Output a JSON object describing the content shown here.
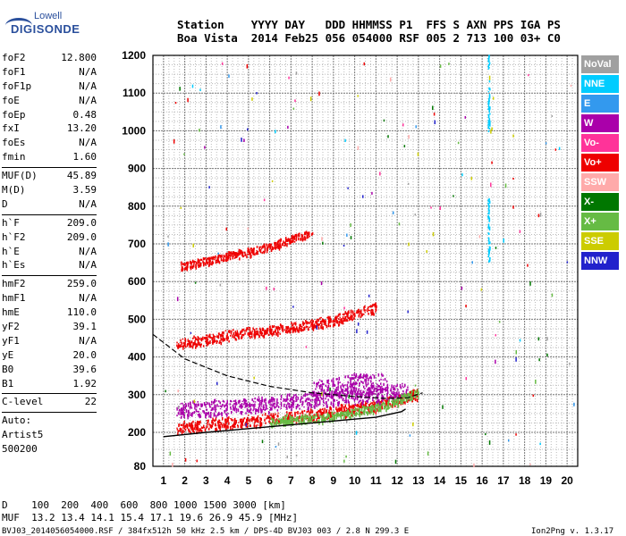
{
  "logo": {
    "line1": "Lowell",
    "line2": "DIGISONDE"
  },
  "header": {
    "labels": "Station    YYYY DAY   DDD HHMMSS P1  FFS S AXN PPS IGA PS",
    "values": "Boa Vista  2014 Feb25 056 054000 RSF 005 2 713 100 03+ C0"
  },
  "params": [
    {
      "group": 1,
      "rows": [
        {
          "name": "foF2",
          "value": "12.800"
        },
        {
          "name": "foF1",
          "value": "N/A"
        },
        {
          "name": "foF1p",
          "value": "N/A"
        },
        {
          "name": "foE",
          "value": "N/A"
        },
        {
          "name": "foEp",
          "value": "0.48"
        },
        {
          "name": "fxI",
          "value": "13.20"
        },
        {
          "name": "foEs",
          "value": "N/A"
        },
        {
          "name": "fmin",
          "value": "1.60"
        }
      ]
    },
    {
      "group": 2,
      "rows": [
        {
          "name": "MUF(D)",
          "value": "45.89"
        },
        {
          "name": "M(D)",
          "value": "3.59"
        },
        {
          "name": "D",
          "value": "N/A"
        }
      ]
    },
    {
      "group": 3,
      "rows": [
        {
          "name": "h`F",
          "value": "209.0"
        },
        {
          "name": "h`F2",
          "value": "209.0"
        },
        {
          "name": "h`E",
          "value": "N/A"
        },
        {
          "name": "h`Es",
          "value": "N/A"
        }
      ]
    },
    {
      "group": 4,
      "rows": [
        {
          "name": "hmF2",
          "value": "259.0"
        },
        {
          "name": "hmF1",
          "value": "N/A"
        },
        {
          "name": "hmE",
          "value": "110.0"
        },
        {
          "name": "yF2",
          "value": "39.1"
        },
        {
          "name": "yF1",
          "value": "N/A"
        },
        {
          "name": "yE",
          "value": "20.0"
        },
        {
          "name": "B0",
          "value": "39.6"
        },
        {
          "name": "B1",
          "value": "1.92"
        }
      ]
    },
    {
      "group": 5,
      "rows": [
        {
          "name": "C-level",
          "value": "22"
        }
      ]
    }
  ],
  "scaling": {
    "line1": "Auto:",
    "line2": "Artist5",
    "line3": "500200"
  },
  "legend": [
    {
      "label": "NoVal",
      "color": "#a0a0a0"
    },
    {
      "label": "NNE",
      "color": "#00ccff"
    },
    {
      "label": "E",
      "color": "#3399ee"
    },
    {
      "label": "W",
      "color": "#aa00aa"
    },
    {
      "label": "Vo-",
      "color": "#ff3399"
    },
    {
      "label": "Vo+",
      "color": "#ee0000"
    },
    {
      "label": "SSW",
      "color": "#ffaaaa"
    },
    {
      "label": "X-",
      "color": "#007700"
    },
    {
      "label": "X+",
      "color": "#66bb44"
    },
    {
      "label": "SSE",
      "color": "#cccc00"
    },
    {
      "label": "NNW",
      "color": "#2222cc"
    }
  ],
  "footer": {
    "distance_line": "D    100  200  400  600  800 1000 1500 3000 [km]",
    "muf_line": "MUF  13.2 13.4 14.1 15.4 17.1 19.6 26.9 45.9 [MHz]",
    "file_line": "BVJ03_2014056054000.RSF / 384fx512h 50 kHz 2.5 km / DPS-4D BVJ03 003 / 2.8 N 299.3 E",
    "version": "Ion2Png v. 1.3.17"
  },
  "chart_data": {
    "type": "scatter",
    "xlim": [
      0.5,
      20.5
    ],
    "ylim": [
      80,
      1200
    ],
    "x_ticks": [
      1,
      2,
      3,
      4,
      5,
      6,
      7,
      8,
      9,
      10,
      11,
      12,
      13,
      14,
      15,
      16,
      17,
      18,
      19,
      20
    ],
    "y_ticks": [
      80,
      200,
      300,
      400,
      500,
      600,
      700,
      800,
      900,
      1000,
      1100,
      1200
    ],
    "grid": true,
    "legend_position": "right",
    "traces": [
      {
        "name": "Vo+",
        "color": "#ee0000",
        "band": [
          [
            1.6,
            210
          ],
          [
            5,
            228
          ],
          [
            8,
            245
          ],
          [
            11,
            268
          ],
          [
            13,
            300
          ]
        ],
        "spread": 14
      },
      {
        "name": "W",
        "color": "#aa00aa",
        "band": [
          [
            1.6,
            255
          ],
          [
            5,
            270
          ],
          [
            8,
            285
          ],
          [
            11,
            300
          ],
          [
            12.5,
            310
          ]
        ],
        "spread": 20
      },
      {
        "name": "W",
        "color": "#aa00aa",
        "band": [
          [
            8,
            310
          ],
          [
            10,
            330
          ],
          [
            11.5,
            330
          ]
        ],
        "spread": 22
      },
      {
        "name": "Vo+",
        "color": "#ee0000",
        "band": [
          [
            1.6,
            430
          ],
          [
            4,
            455
          ],
          [
            7,
            475
          ],
          [
            9,
            495
          ],
          [
            11,
            530
          ]
        ],
        "spread": 12
      },
      {
        "name": "Vo+",
        "color": "#ee0000",
        "band": [
          [
            1.8,
            640
          ],
          [
            4,
            665
          ],
          [
            6,
            690
          ],
          [
            8,
            730
          ]
        ],
        "spread": 10
      },
      {
        "name": "X+",
        "color": "#66bb44",
        "band": [
          [
            6,
            225
          ],
          [
            9,
            240
          ],
          [
            11.5,
            270
          ],
          [
            13,
            305
          ]
        ],
        "spread": 10
      },
      {
        "name": "NNE",
        "color": "#00ccff",
        "band": [
          [
            16.3,
            1000
          ],
          [
            16.3,
            1200
          ]
        ],
        "spread": 0
      },
      {
        "name": "NNE",
        "color": "#00ccff",
        "band": [
          [
            16.3,
            640
          ],
          [
            16.3,
            820
          ]
        ],
        "spread": 0
      }
    ],
    "o_trace_curve": [
      [
        1,
        185
      ],
      [
        3,
        200
      ],
      [
        6,
        215
      ],
      [
        9,
        230
      ],
      [
        11,
        240
      ],
      [
        12.2,
        255
      ],
      [
        12.4,
        262
      ]
    ],
    "x_trace_curve": [
      [
        0.5,
        460
      ],
      [
        2,
        395
      ],
      [
        4,
        350
      ],
      [
        6,
        322
      ],
      [
        8,
        305
      ],
      [
        10,
        295
      ],
      [
        11.5,
        290
      ],
      [
        12.5,
        292
      ],
      [
        13.2,
        305
      ]
    ]
  }
}
